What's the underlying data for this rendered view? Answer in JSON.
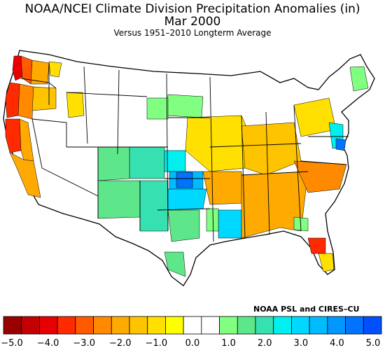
{
  "title": "NOAA/NCEI Climate Division Precipitation Anomalies (in)",
  "subtitle_line": "Mar 2000",
  "period_note": "Versus 1951–2010 Longterm Average",
  "credit": "NOAA PSL and CIRES–CU",
  "colorbar": {
    "colors": [
      "#990000",
      "#c40000",
      "#e80000",
      "#ff2a00",
      "#ff5a00",
      "#ff8a00",
      "#ffaa00",
      "#ffc400",
      "#ffe000",
      "#ffff00",
      "#ffffff",
      "#ffffff",
      "#80ff80",
      "#5ee68a",
      "#36e0b0",
      "#00f0f0",
      "#00d8ff",
      "#00bcff",
      "#0097ff",
      "#0073ff",
      "#0050ff"
    ],
    "tick_labels": [
      "−5.0",
      "−4.0",
      "−3.0",
      "−2.0",
      "−1.0",
      "0.0",
      "1.0",
      "2.0",
      "3.0",
      "4.0",
      "5.0"
    ]
  }
}
